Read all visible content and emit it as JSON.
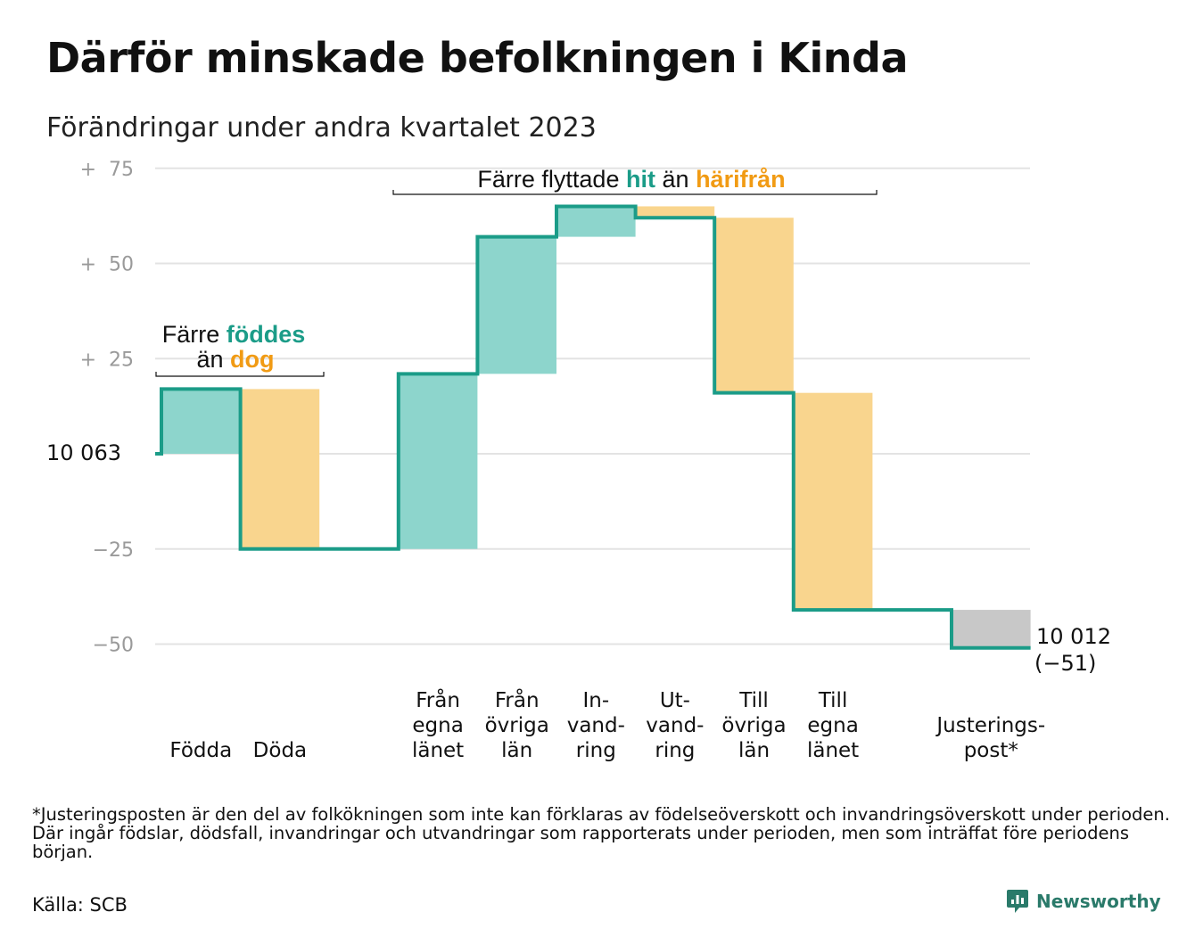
{
  "title": "Därför minskade befolkningen i Kinda",
  "subtitle": "Förändringar under andra kvartalet 2023",
  "footnote": "*Justeringsposten är den del av folkökningen som inte kan förklaras av födelseöverskott och invandringsöverskott under perioden. Där ingår födslar, dödsfall, invandringar och utvandringar som rapporterats under perioden, men som inträffat före periodens början.",
  "source": "Källa: SCB",
  "brand": {
    "name": "Newsworthy",
    "icon": "newsworthy-logo-icon"
  },
  "colors": {
    "increase": "#8dd5cc",
    "decrease": "#f9d58e",
    "adjustment": "#c8c8c8",
    "line": "#1b9c88",
    "grid": "#e3e3e3"
  },
  "annotations": {
    "births": {
      "prefix": "Färre",
      "green": "föddes",
      "line2_prefix": "än",
      "orange": "dog"
    },
    "migration": {
      "prefix": "Färre flyttade",
      "green": "hit",
      "middle": "än",
      "orange": "härifrån"
    }
  },
  "chart_data": {
    "type": "waterfall",
    "start_value": 10063,
    "start_label": "10 063",
    "end_value": 10012,
    "end_label": "10 012",
    "end_change_label": "(−51)",
    "ylim": [
      -55,
      78
    ],
    "yticks": [
      {
        "value": 75,
        "label": "+  75"
      },
      {
        "value": 50,
        "label": "+  50"
      },
      {
        "value": 25,
        "label": "+  25"
      },
      {
        "value": -25,
        "label": "−25"
      },
      {
        "value": -50,
        "label": "−50"
      }
    ],
    "grid": true,
    "steps": [
      {
        "label": [
          "Födda"
        ],
        "value": 17,
        "kind": "increase"
      },
      {
        "label": [
          "Döda"
        ],
        "value": -42,
        "kind": "decrease"
      },
      {
        "label": [],
        "value": 0,
        "kind": "gap"
      },
      {
        "label": [
          "Från",
          "egna",
          "länet"
        ],
        "value": 46,
        "kind": "increase"
      },
      {
        "label": [
          "Från",
          "övriga",
          "län"
        ],
        "value": 36,
        "kind": "increase"
      },
      {
        "label": [
          "In-",
          "vand-",
          "ring"
        ],
        "value": 8,
        "kind": "increase"
      },
      {
        "label": [
          "Ut-",
          "vand-",
          "ring"
        ],
        "value": -3,
        "kind": "decrease"
      },
      {
        "label": [
          "Till",
          "övriga",
          "län"
        ],
        "value": -46,
        "kind": "decrease"
      },
      {
        "label": [
          "Till",
          "egna",
          "länet"
        ],
        "value": -57,
        "kind": "decrease"
      },
      {
        "label": [],
        "value": 0,
        "kind": "gap"
      },
      {
        "label": [
          "Justerings-",
          "post*"
        ],
        "value": -10,
        "kind": "adjustment"
      }
    ]
  }
}
